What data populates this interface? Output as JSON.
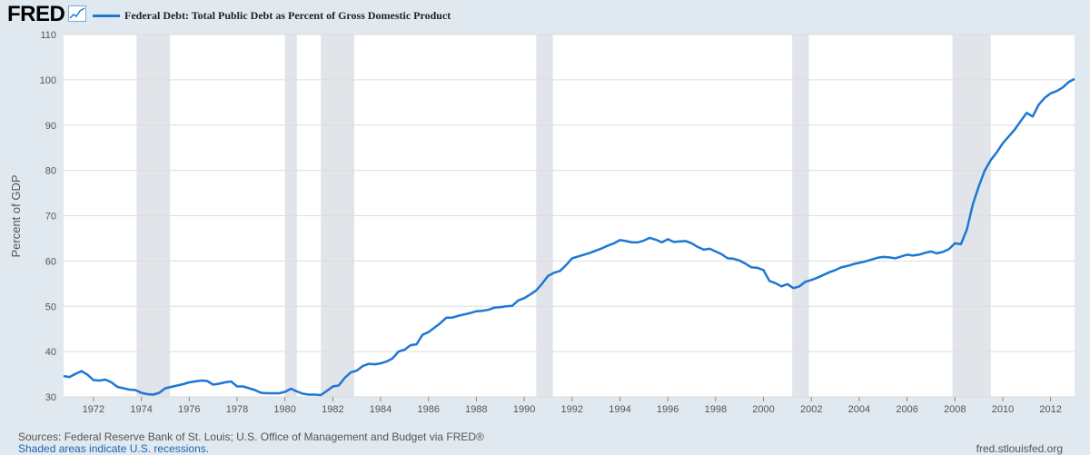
{
  "header": {
    "logo_text": "FRED",
    "logo_icon": "line-chart-icon",
    "legend_label": "Federal Debt: Total Public Debt as Percent of Gross Domestic Product"
  },
  "footer": {
    "sources": "Sources: Federal Reserve Bank of St. Louis; U.S. Office of Management and Budget via FRED®",
    "recession_note": "Shaded areas indicate U.S. recessions.",
    "url": "fred.stlouisfed.org"
  },
  "colors": {
    "line": "#1e77d3",
    "plot_background": "#ffffff",
    "page_background": "#e1e9f0",
    "recession_shade": "#e1e5ea",
    "grid": "#dddddd"
  },
  "chart_data": {
    "type": "line",
    "title": "Federal Debt: Total Public Debt as Percent of Gross Domestic Product",
    "xlabel": "",
    "ylabel": "Percent of GDP",
    "xlim": [
      1970.75,
      2013.0
    ],
    "ylim": [
      30,
      110
    ],
    "y_ticks": [
      30,
      40,
      50,
      60,
      70,
      80,
      90,
      100,
      110
    ],
    "x_ticks": [
      1972,
      1974,
      1976,
      1978,
      1980,
      1982,
      1984,
      1986,
      1988,
      1990,
      1992,
      1994,
      1996,
      1998,
      2000,
      2002,
      2004,
      2006,
      2008,
      2010,
      2012
    ],
    "grid": "horizontal",
    "recessions": [
      [
        1973.8,
        1975.2
      ],
      [
        1980.0,
        1980.5
      ],
      [
        1981.5,
        1982.9
      ],
      [
        1990.5,
        1991.2
      ],
      [
        2001.2,
        2001.9
      ],
      [
        2007.9,
        2009.5
      ]
    ],
    "series": [
      {
        "name": "Federal Debt: Total Public Debt as Percent of Gross Domestic Product",
        "x": [
          1970.75,
          1971.0,
          1971.25,
          1971.5,
          1971.75,
          1972.0,
          1972.25,
          1972.5,
          1972.75,
          1973.0,
          1973.25,
          1973.5,
          1973.75,
          1974.0,
          1974.25,
          1974.5,
          1974.75,
          1975.0,
          1975.25,
          1975.5,
          1975.75,
          1976.0,
          1976.25,
          1976.5,
          1976.75,
          1977.0,
          1977.25,
          1977.5,
          1977.75,
          1978.0,
          1978.25,
          1978.5,
          1978.75,
          1979.0,
          1979.25,
          1979.5,
          1979.75,
          1980.0,
          1980.25,
          1980.5,
          1980.75,
          1981.0,
          1981.25,
          1981.5,
          1981.75,
          1982.0,
          1982.25,
          1982.5,
          1982.75,
          1983.0,
          1983.25,
          1983.5,
          1983.75,
          1984.0,
          1984.25,
          1984.5,
          1984.75,
          1985.0,
          1985.25,
          1985.5,
          1985.75,
          1986.0,
          1986.25,
          1986.5,
          1986.75,
          1987.0,
          1987.25,
          1987.5,
          1987.75,
          1988.0,
          1988.25,
          1988.5,
          1988.75,
          1989.0,
          1989.25,
          1989.5,
          1989.75,
          1990.0,
          1990.25,
          1990.5,
          1990.75,
          1991.0,
          1991.25,
          1991.5,
          1991.75,
          1992.0,
          1992.25,
          1992.5,
          1992.75,
          1993.0,
          1993.25,
          1993.5,
          1993.75,
          1994.0,
          1994.25,
          1994.5,
          1994.75,
          1995.0,
          1995.25,
          1995.5,
          1995.75,
          1996.0,
          1996.25,
          1996.5,
          1996.75,
          1997.0,
          1997.25,
          1997.5,
          1997.75,
          1998.0,
          1998.25,
          1998.5,
          1998.75,
          1999.0,
          1999.25,
          1999.5,
          1999.75,
          2000.0,
          2000.25,
          2000.5,
          2000.75,
          2001.0,
          2001.25,
          2001.5,
          2001.75,
          2002.0,
          2002.25,
          2002.5,
          2002.75,
          2003.0,
          2003.25,
          2003.5,
          2003.75,
          2004.0,
          2004.25,
          2004.5,
          2004.75,
          2005.0,
          2005.25,
          2005.5,
          2005.75,
          2006.0,
          2006.25,
          2006.5,
          2006.75,
          2007.0,
          2007.25,
          2007.5,
          2007.75,
          2008.0,
          2008.25,
          2008.5,
          2008.75,
          2009.0,
          2009.25,
          2009.5,
          2009.75,
          2010.0,
          2010.25,
          2010.5,
          2010.75,
          2011.0,
          2011.25,
          2011.5,
          2011.75,
          2012.0,
          2012.25,
          2012.5,
          2012.75,
          2013.0
        ],
        "values": [
          34.6,
          34.4,
          35.1,
          35.7,
          34.9,
          33.7,
          33.6,
          33.8,
          33.2,
          32.2,
          31.9,
          31.6,
          31.5,
          30.9,
          30.6,
          30.5,
          30.9,
          31.9,
          32.2,
          32.5,
          32.8,
          33.2,
          33.4,
          33.6,
          33.5,
          32.7,
          32.9,
          33.2,
          33.4,
          32.3,
          32.3,
          31.9,
          31.5,
          30.9,
          30.8,
          30.8,
          30.8,
          31.1,
          31.8,
          31.2,
          30.7,
          30.5,
          30.5,
          30.4,
          31.3,
          32.3,
          32.5,
          34.2,
          35.4,
          35.8,
          36.8,
          37.3,
          37.2,
          37.4,
          37.8,
          38.5,
          40.0,
          40.4,
          41.4,
          41.6,
          43.7,
          44.3,
          45.3,
          46.3,
          47.5,
          47.5,
          47.9,
          48.2,
          48.5,
          48.9,
          49.0,
          49.2,
          49.7,
          49.8,
          50.0,
          50.1,
          51.3,
          51.8,
          52.6,
          53.5,
          55.0,
          56.7,
          57.4,
          57.8,
          59.1,
          60.6,
          61.0,
          61.4,
          61.8,
          62.3,
          62.8,
          63.4,
          63.9,
          64.6,
          64.4,
          64.1,
          64.1,
          64.5,
          65.1,
          64.7,
          64.1,
          64.8,
          64.2,
          64.3,
          64.4,
          63.9,
          63.1,
          62.5,
          62.7,
          62.1,
          61.5,
          60.6,
          60.5,
          60.1,
          59.4,
          58.6,
          58.5,
          58.0,
          55.6,
          55.1,
          54.4,
          54.9,
          54.0,
          54.4,
          55.4,
          55.8,
          56.3,
          56.9,
          57.5,
          58.0,
          58.6,
          58.9,
          59.3,
          59.6,
          59.9,
          60.3,
          60.7,
          60.9,
          60.8,
          60.6,
          61.0,
          61.4,
          61.2,
          61.4,
          61.8,
          62.1,
          61.7,
          62.0,
          62.6,
          63.9,
          63.7,
          67.0,
          72.5,
          76.5,
          80.0,
          82.3,
          84.0,
          86.0,
          87.5,
          89.0,
          90.9,
          92.7,
          91.9,
          94.5,
          96.0,
          97.0,
          97.5,
          98.3,
          99.5,
          100.2
        ]
      }
    ]
  }
}
